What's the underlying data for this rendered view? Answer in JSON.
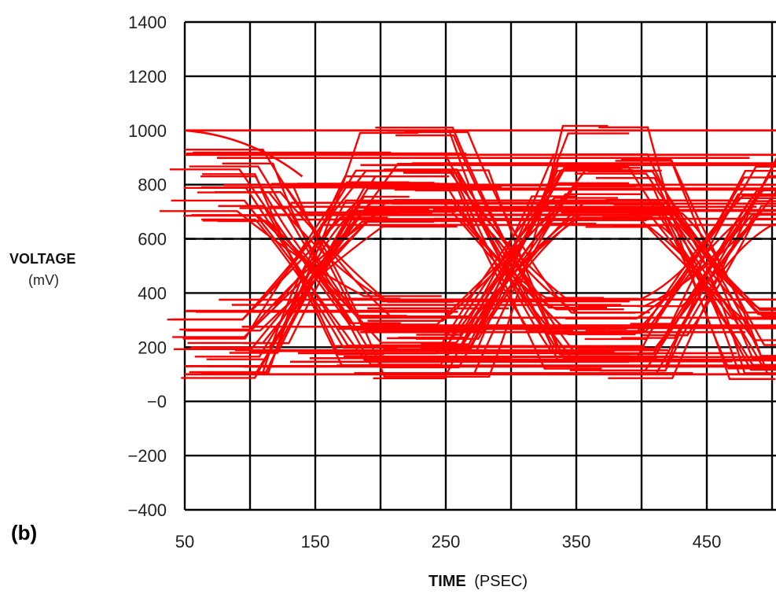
{
  "panel_label": "(b)",
  "colors": {
    "trace": "#ff0000",
    "grid": "#000000",
    "text": "#222222"
  },
  "chart_data": {
    "type": "line",
    "title": "",
    "xlabel_bold": "TIME",
    "xlabel_unit": "(PSEC)",
    "ylabel_bold": "VOLTAGE",
    "ylabel_unit": "(mV)",
    "xlim": [
      50,
      550
    ],
    "ylim": [
      -400,
      1400
    ],
    "xticks": [
      50,
      150,
      250,
      350,
      450
    ],
    "xtick_labels": [
      "50",
      "150",
      "250",
      "350",
      "450"
    ],
    "x_grid": [
      50,
      100,
      150,
      200,
      250,
      300,
      350,
      400,
      450,
      500,
      550
    ],
    "yticks": [
      1400,
      1200,
      1000,
      800,
      600,
      400,
      200,
      0,
      -200,
      -400
    ],
    "ytick_labels": [
      "1400",
      "1200",
      "1000",
      "800",
      "600",
      "400",
      "200",
      "−0",
      "−200",
      "−400"
    ],
    "grid": true,
    "reference_lines_dashed": [
      600
    ],
    "high_levels_mV": [
      1000,
      910,
      870,
      840,
      810,
      790,
      760,
      740,
      720,
      700,
      680,
      660
    ],
    "low_levels_mV": [
      100,
      120,
      140,
      160,
      180,
      200,
      220,
      250,
      280,
      310,
      340,
      370
    ],
    "crossing_times_psec": [
      150,
      300,
      450
    ],
    "description_series": "Eye diagram: overlapping red signal traces transitioning between high (~650–1000 mV) and low (~100–370 mV) levels with crossing points near 150, 300 and 450 ps, centered around 500 mV"
  }
}
